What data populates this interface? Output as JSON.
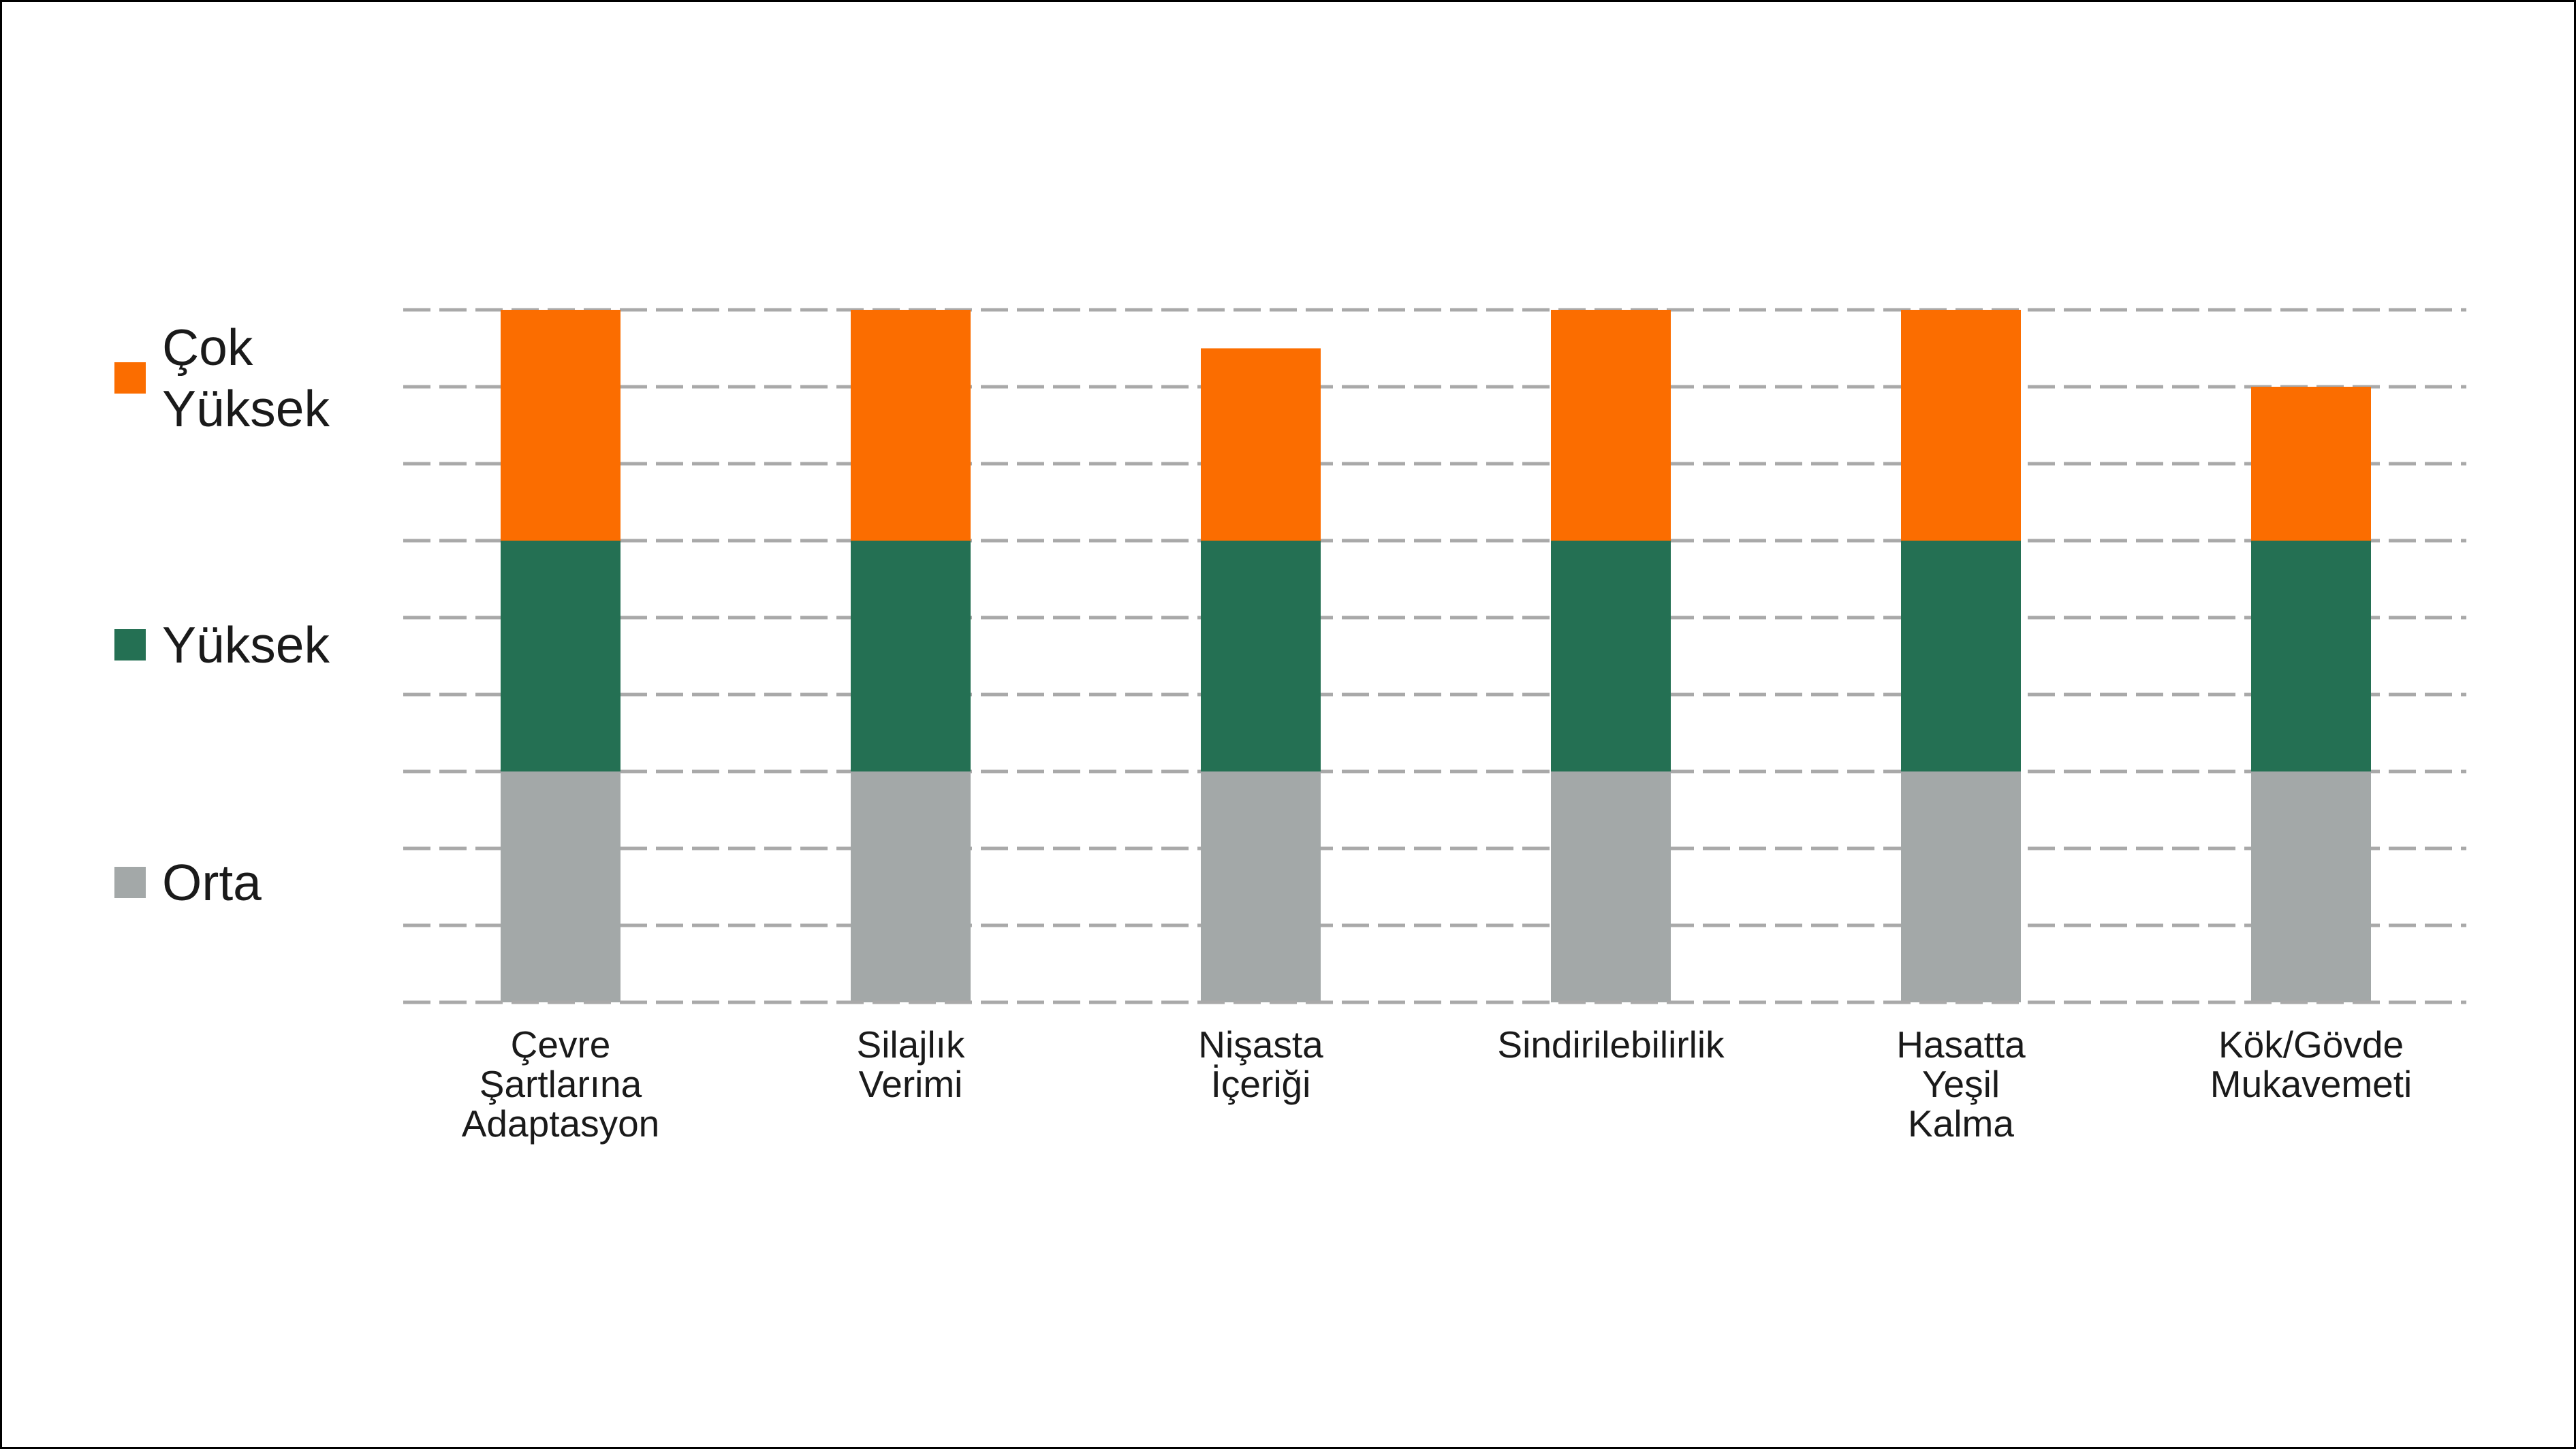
{
  "chart_data": {
    "type": "bar",
    "stacked": true,
    "orientation": "vertical",
    "title": "",
    "categories": [
      "Çevre Şartlarına Adaptasyon",
      "Silajlık Verimi",
      "Nişasta İçeriği",
      "Sindirilebilirlik",
      "Hasatta Yeşil Kalma",
      "Kök/Gövde Mukavemeti"
    ],
    "category_label_lines": [
      [
        "Çevre",
        "Şartlarına",
        "Adaptasyon"
      ],
      [
        "Silajlık",
        "Verimi"
      ],
      [
        "Nişasta",
        "İçeriği"
      ],
      [
        "Sindirilebilirlik"
      ],
      [
        "Hasatta",
        "Yeşil",
        "Kalma"
      ],
      [
        "Kök/Gövde",
        "Mukavemeti"
      ]
    ],
    "series": [
      {
        "name": "Orta",
        "color": "#A3A8A8",
        "values": [
          3,
          3,
          3,
          3,
          3,
          3
        ]
      },
      {
        "name": "Yüksek",
        "color": "#247053",
        "values": [
          3,
          3,
          3,
          3,
          3,
          3
        ]
      },
      {
        "name": "Çok Yüksek",
        "color": "#FB6D00",
        "values": [
          3,
          3,
          2.5,
          3,
          3,
          2
        ]
      }
    ],
    "totals": [
      9,
      9,
      8.5,
      9,
      9,
      8
    ],
    "ylim": [
      0,
      9
    ],
    "gridlines": {
      "count": 10,
      "step": 1,
      "style": "dashed",
      "color": "#A9A9A9"
    },
    "grid_axis_labels": "none",
    "legend": {
      "position": "left",
      "items": [
        {
          "label": "Çok Yüksek",
          "lines": [
            "Çok",
            "Yüksek"
          ],
          "color": "#FB6D00"
        },
        {
          "label": "Yüksek",
          "lines": [
            "Yüksek"
          ],
          "color": "#247053"
        },
        {
          "label": "Orta",
          "lines": [
            "Orta"
          ],
          "color": "#A3A8A8"
        }
      ]
    },
    "text_color": "#1A1A1A",
    "background": "#FFFFFF",
    "frame_border_color": "#000000"
  }
}
